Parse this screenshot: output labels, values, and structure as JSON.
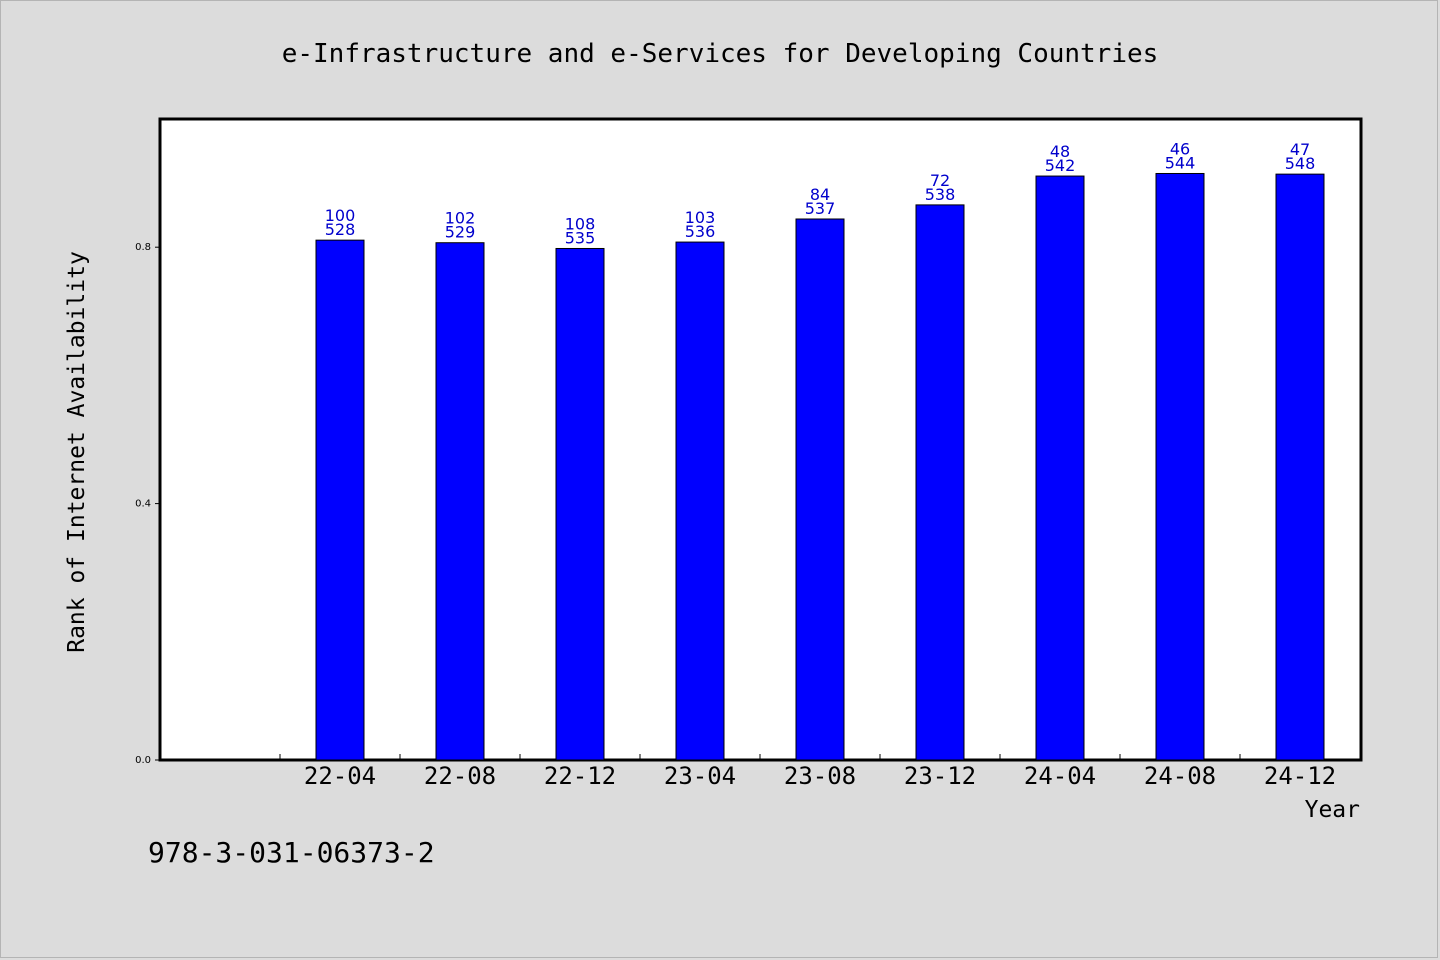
{
  "chart_data": {
    "type": "bar",
    "title": "e-Infrastructure and e-Services for Developing Countries",
    "xlabel": "Year",
    "ylabel": "Rank of Internet Availability",
    "ylim": [
      0,
      1.0
    ],
    "yticks": [
      "0.0",
      "0.4",
      "0.8"
    ],
    "ytick_values": [
      0.0,
      0.4,
      0.8
    ],
    "grid": false,
    "bar_color": "#0000ff",
    "label_color": "#0000cc",
    "categories": [
      "22-04",
      "22-08",
      "22-12",
      "23-04",
      "23-08",
      "23-12",
      "24-04",
      "24-08",
      "24-12"
    ],
    "values": [
      0.811,
      0.807,
      0.798,
      0.808,
      0.844,
      0.866,
      0.911,
      0.915,
      0.914
    ],
    "rank": [
      "100",
      "102",
      "108",
      "103",
      "84",
      "72",
      "48",
      "46",
      "47"
    ],
    "total": [
      "528",
      "529",
      "535",
      "536",
      "537",
      "538",
      "542",
      "544",
      "548"
    ]
  },
  "footer": {
    "isbn": "978-3-031-06373-2"
  }
}
